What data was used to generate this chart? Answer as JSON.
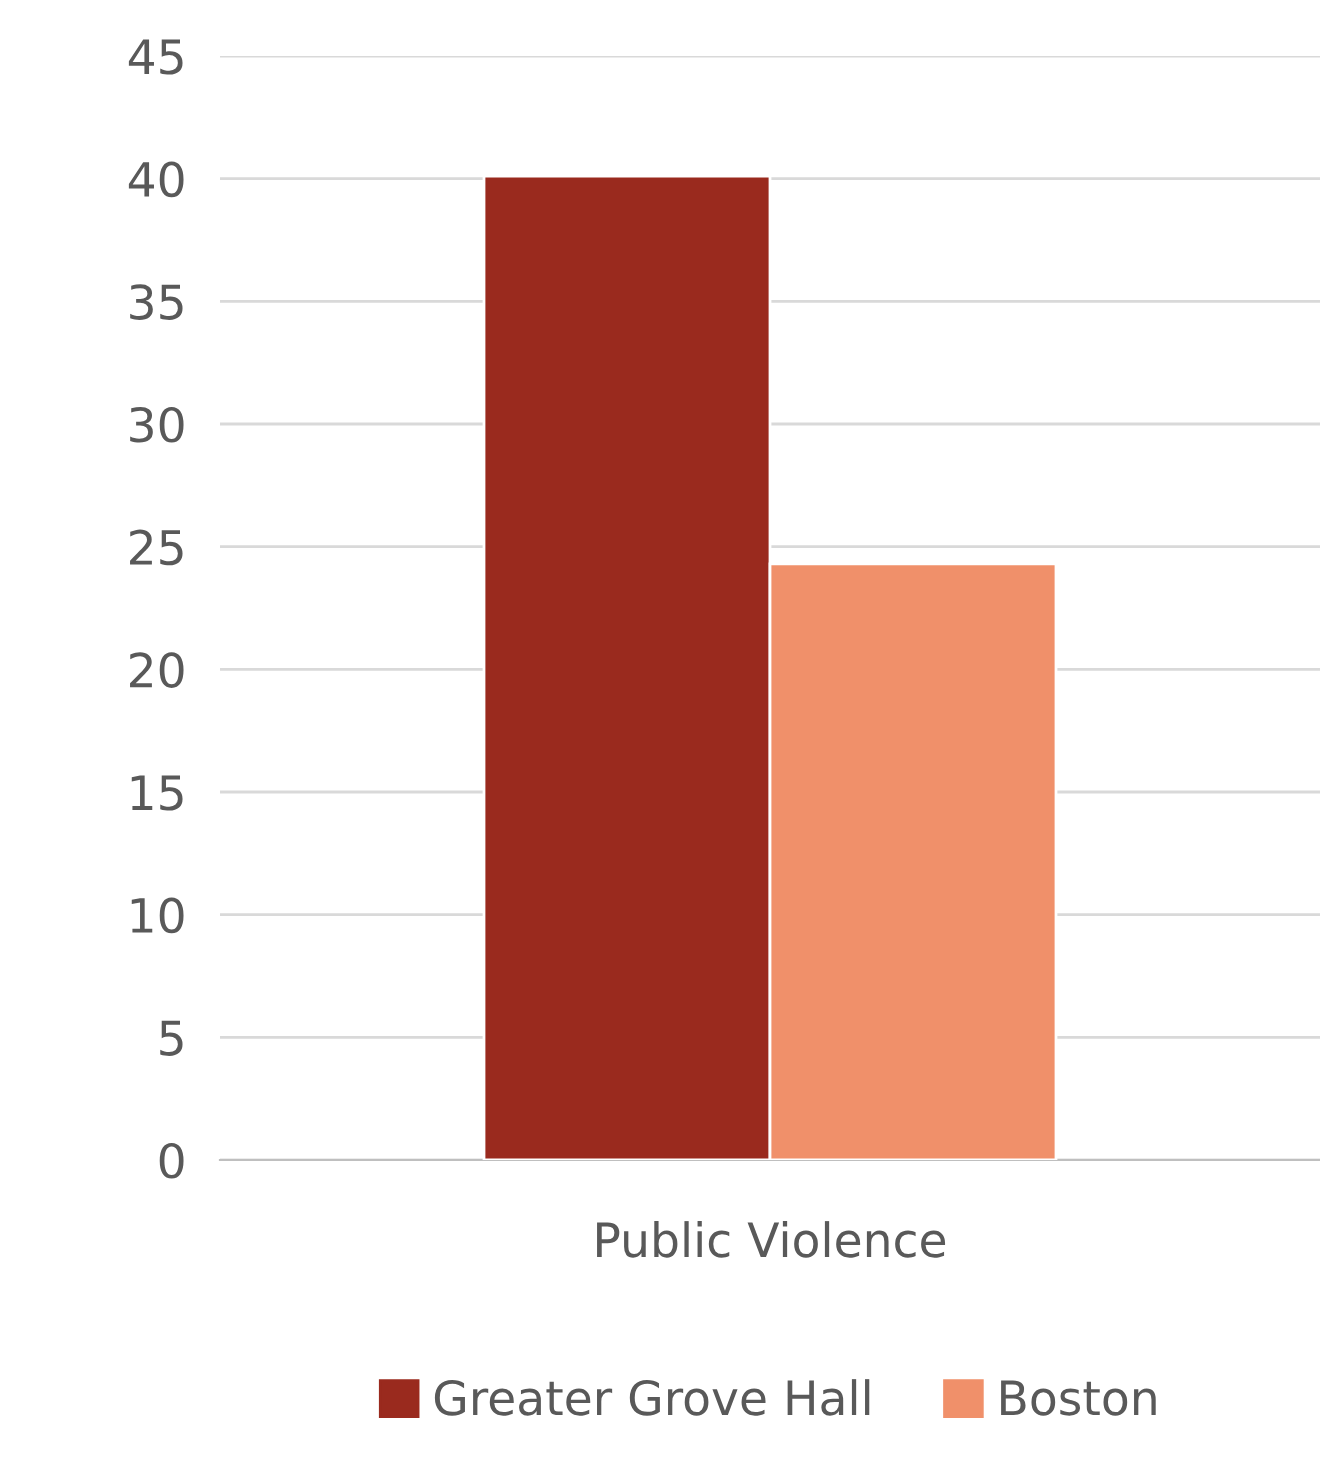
{
  "chart_data": {
    "type": "bar",
    "categories": [
      "Public Violence"
    ],
    "series": [
      {
        "name": "Greater Grove Hall",
        "color": "#9a2a1e",
        "values": [
          40.1
        ]
      },
      {
        "name": "Boston",
        "color": "#f0906a",
        "values": [
          24.3
        ]
      }
    ],
    "ylim": [
      0,
      45
    ],
    "yticks": [
      0,
      5,
      10,
      15,
      20,
      25,
      30,
      35,
      40,
      45
    ],
    "grid": "y",
    "legend": "bottom"
  }
}
